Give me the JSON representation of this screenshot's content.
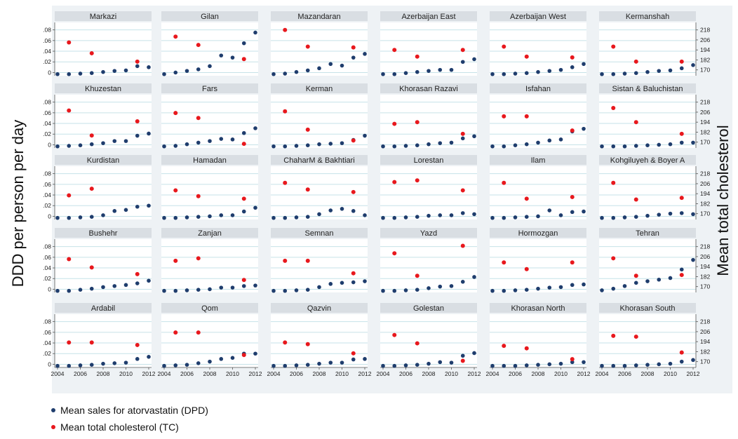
{
  "chart_data": {
    "type": "scatter",
    "ylabel_left": "DDD per person per day",
    "ylabel_right": "Mean total cholesterol",
    "x_ticks": [
      2004,
      2006,
      2008,
      2010,
      2012
    ],
    "xlim": [
      2004,
      2012
    ],
    "y_left_ticks": [
      0,
      0.02,
      0.04,
      0.06,
      0.08
    ],
    "y_left_tick_labels": [
      "0",
      ".02",
      ".04",
      ".06",
      ".08"
    ],
    "y_left_lim": [
      -0.006,
      0.094
    ],
    "y_right_ticks": [
      170,
      182,
      194,
      206,
      218
    ],
    "y_right_lim": [
      163,
      227
    ],
    "colors": {
      "dpd": "#1f3d6d",
      "tc": "#e8181d",
      "strip": "#d9dee3",
      "panel_bg": "#eef2f5",
      "plot_bg": "#ffffff",
      "grid": "#c6e2e8"
    },
    "legend": [
      {
        "label": "Mean sales for atorvastatin (DPD)",
        "color": "#1f3d6d"
      },
      {
        "label": "Mean total cholesterol (TC)",
        "color": "#e8181d"
      }
    ],
    "dpd_years": [
      2004,
      2005,
      2006,
      2007,
      2008,
      2009,
      2010,
      2011,
      2012
    ],
    "tc_years": [
      2005,
      2007,
      2011
    ],
    "panels": [
      {
        "name": "Markazi",
        "dpd": [
          -0.003,
          -0.003,
          -0.002,
          -0.001,
          0.001,
          0.003,
          0.004,
          0.012,
          0.01
        ],
        "tc": [
          203,
          190,
          180
        ]
      },
      {
        "name": "Gilan",
        "dpd": [
          -0.003,
          0.0,
          0.003,
          0.006,
          0.012,
          0.032,
          0.028,
          0.055,
          0.075
        ],
        "tc": [
          210,
          200,
          183
        ]
      },
      {
        "name": "Mazandaran",
        "dpd": [
          -0.003,
          -0.002,
          0.001,
          0.004,
          0.008,
          0.016,
          0.013,
          0.028,
          0.035
        ],
        "tc": [
          218,
          198,
          197
        ]
      },
      {
        "name": "Azerbaijan East",
        "dpd": [
          -0.003,
          -0.003,
          -0.001,
          0.001,
          0.003,
          0.005,
          0.005,
          0.02,
          0.025
        ],
        "tc": [
          194,
          186,
          194
        ]
      },
      {
        "name": "Azerbaijan West",
        "dpd": [
          -0.003,
          -0.003,
          -0.002,
          -0.001,
          0.001,
          0.003,
          0.005,
          0.01,
          0.016
        ],
        "tc": [
          198,
          186,
          185
        ]
      },
      {
        "name": "Kermanshah",
        "dpd": [
          -0.003,
          -0.003,
          -0.002,
          -0.001,
          0.001,
          0.003,
          0.004,
          0.008,
          0.014
        ],
        "tc": [
          198,
          180,
          180
        ]
      },
      {
        "name": "Khuzestan",
        "dpd": [
          -0.003,
          -0.002,
          -0.001,
          0.001,
          0.003,
          0.007,
          0.007,
          0.017,
          0.021
        ],
        "tc": [
          208,
          178,
          195
        ]
      },
      {
        "name": "Fars",
        "dpd": [
          -0.003,
          -0.002,
          0.001,
          0.004,
          0.007,
          0.011,
          0.01,
          0.022,
          0.031
        ],
        "tc": [
          205,
          199,
          168
        ]
      },
      {
        "name": "Kerman",
        "dpd": [
          -0.003,
          -0.003,
          -0.002,
          -0.001,
          0.001,
          0.002,
          0.003,
          0.009,
          0.017
        ],
        "tc": [
          207,
          185,
          172
        ]
      },
      {
        "name": "Khorasan Razavi",
        "dpd": [
          -0.003,
          -0.003,
          -0.002,
          -0.001,
          0.001,
          0.003,
          0.004,
          0.012,
          0.016
        ],
        "tc": [
          192,
          194,
          180
        ]
      },
      {
        "name": "Isfahan",
        "dpd": [
          -0.003,
          -0.003,
          -0.001,
          0.001,
          0.004,
          0.008,
          0.01,
          0.025,
          0.03
        ],
        "tc": [
          201,
          201,
          184
        ]
      },
      {
        "name": "Sistan & Baluchistan",
        "dpd": [
          -0.003,
          -0.003,
          -0.003,
          -0.002,
          -0.001,
          0.0,
          0.001,
          0.004,
          0.004
        ],
        "tc": [
          211,
          194,
          180
        ]
      },
      {
        "name": "Kurdistan",
        "dpd": [
          -0.003,
          -0.003,
          -0.002,
          -0.001,
          0.002,
          0.01,
          0.012,
          0.018,
          0.02
        ],
        "tc": [
          192,
          200
        ]
      },
      {
        "name": "Hamadan",
        "dpd": [
          -0.003,
          -0.003,
          -0.002,
          -0.001,
          0.0,
          0.002,
          0.002,
          0.009,
          0.016
        ],
        "tc": [
          198,
          191,
          188
        ]
      },
      {
        "name": "ChaharM & Bakhtiari",
        "dpd": [
          -0.003,
          -0.003,
          -0.002,
          -0.001,
          0.004,
          0.011,
          0.014,
          0.01,
          0.002
        ],
        "tc": [
          207,
          199,
          196
        ]
      },
      {
        "name": "Lorestan",
        "dpd": [
          -0.003,
          -0.003,
          -0.002,
          -0.001,
          0.001,
          0.002,
          0.002,
          0.006,
          0.004
        ],
        "tc": [
          208,
          210,
          198
        ]
      },
      {
        "name": "Ilam",
        "dpd": [
          -0.003,
          -0.003,
          -0.002,
          -0.001,
          0.0,
          0.011,
          0.002,
          0.008,
          0.009
        ],
        "tc": [
          207,
          188,
          190
        ]
      },
      {
        "name": "Kohgiluyeh & Boyer A",
        "dpd": [
          -0.003,
          -0.003,
          -0.002,
          -0.001,
          0.001,
          0.003,
          0.005,
          0.006,
          0.004
        ],
        "tc": [
          207,
          187,
          189
        ]
      },
      {
        "name": "Bushehr",
        "dpd": [
          -0.003,
          -0.003,
          -0.001,
          0.001,
          0.004,
          0.006,
          0.008,
          0.011,
          0.016
        ],
        "tc": [
          203,
          193,
          185
        ]
      },
      {
        "name": "Zanjan",
        "dpd": [
          -0.003,
          -0.003,
          -0.002,
          -0.001,
          0.0,
          0.003,
          0.003,
          0.006,
          0.007
        ],
        "tc": [
          201,
          204,
          178
        ]
      },
      {
        "name": "Semnan",
        "dpd": [
          -0.003,
          -0.003,
          -0.002,
          -0.001,
          0.004,
          0.01,
          0.012,
          0.013,
          0.015
        ],
        "tc": [
          201,
          201,
          186
        ]
      },
      {
        "name": "Yazd",
        "dpd": [
          -0.003,
          -0.003,
          -0.002,
          -0.001,
          0.002,
          0.005,
          0.006,
          0.014,
          0.023
        ],
        "tc": [
          210,
          183,
          219
        ]
      },
      {
        "name": "Hormozgan",
        "dpd": [
          -0.003,
          -0.003,
          -0.002,
          -0.001,
          0.001,
          0.003,
          0.004,
          0.008,
          0.009
        ],
        "tc": [
          199,
          191,
          199
        ]
      },
      {
        "name": "Tehran",
        "dpd": [
          -0.002,
          0.001,
          0.006,
          0.012,
          0.015,
          0.018,
          0.021,
          0.037,
          0.055
        ],
        "tc": [
          204,
          183,
          184
        ]
      },
      {
        "name": "Ardabil",
        "dpd": [
          -0.003,
          -0.003,
          -0.002,
          -0.001,
          0.001,
          0.002,
          0.003,
          0.01,
          0.014
        ],
        "tc": [
          193,
          193,
          190
        ]
      },
      {
        "name": "Qom",
        "dpd": [
          -0.003,
          -0.002,
          -0.001,
          0.002,
          0.005,
          0.01,
          0.012,
          0.02,
          0.02
        ],
        "tc": [
          205,
          205,
          178
        ]
      },
      {
        "name": "Qazvin",
        "dpd": [
          -0.003,
          -0.003,
          -0.002,
          -0.001,
          0.001,
          0.003,
          0.003,
          0.009,
          0.01
        ],
        "tc": [
          193,
          191,
          180
        ]
      },
      {
        "name": "Golestan",
        "dpd": [
          -0.003,
          -0.003,
          -0.002,
          -0.001,
          0.001,
          0.004,
          0.003,
          0.016,
          0.021
        ],
        "tc": [
          202,
          192,
          171
        ]
      },
      {
        "name": "Khorasan North",
        "dpd": [
          -0.003,
          -0.003,
          -0.003,
          -0.002,
          -0.001,
          0.0,
          0.001,
          0.004,
          0.004
        ],
        "tc": [
          189,
          186,
          173
        ]
      },
      {
        "name": "Khorasan South",
        "dpd": [
          -0.003,
          -0.003,
          -0.003,
          -0.002,
          -0.001,
          0.0,
          0.001,
          0.005,
          0.008
        ],
        "tc": [
          201,
          200,
          181
        ]
      }
    ]
  }
}
